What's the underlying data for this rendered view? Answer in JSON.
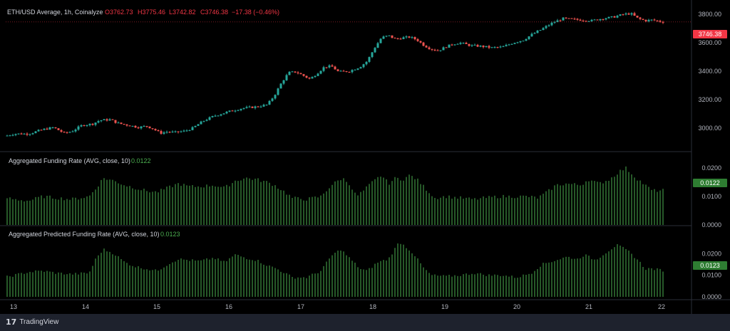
{
  "header": {
    "symbol_label": "ETH/USD Average, 1h, Coinalyze",
    "open": "O3762.73",
    "high": "H3775.46",
    "low": "L3742.82",
    "close": "C3746.38",
    "change": "−17.38 (−0.46%)"
  },
  "price_badge": "3746.38",
  "funding_panel": {
    "title": "Aggregated Funding Rate (AVG, close, 10)",
    "value": "0.0122"
  },
  "predicted_panel": {
    "title": "Aggregated Predicted Funding Rate (AVG, close, 10)",
    "value": "0.0123"
  },
  "footer": {
    "brand": "TradingView"
  },
  "colors": {
    "up": "#26a69a",
    "down": "#ef5350",
    "hist": "#4caf50",
    "badge_red": "#f23645",
    "badge_green": "#2e7d32"
  },
  "chart_data": [
    {
      "type": "candlestick",
      "title": "ETH/USD Average, 1h, Coinalyze",
      "x_labels": [
        "13",
        "14",
        "15",
        "16",
        "17",
        "18",
        "19",
        "20",
        "21",
        "22"
      ],
      "y_ticks": [
        3000,
        3200,
        3400,
        3600,
        3800
      ],
      "y_tick_labels": [
        "3000.00",
        "3200.00",
        "3400.00",
        "3600.00",
        "3800.00"
      ],
      "ylim": [
        2840,
        3870
      ],
      "close_anchors": [
        [
          0,
          2935
        ],
        [
          20,
          2960
        ],
        [
          40,
          2960
        ],
        [
          60,
          2990
        ],
        [
          75,
          3005
        ],
        [
          90,
          2965
        ],
        [
          100,
          2975
        ],
        [
          115,
          3020
        ],
        [
          130,
          3030
        ],
        [
          140,
          3055
        ],
        [
          155,
          3060
        ],
        [
          165,
          3035
        ],
        [
          180,
          3020
        ],
        [
          195,
          3005
        ],
        [
          205,
          3015
        ],
        [
          215,
          2995
        ],
        [
          225,
          2965
        ],
        [
          235,
          2975
        ],
        [
          245,
          2970
        ],
        [
          260,
          2980
        ],
        [
          270,
          3000
        ],
        [
          285,
          3050
        ],
        [
          300,
          3085
        ],
        [
          320,
          3115
        ],
        [
          340,
          3140
        ],
        [
          360,
          3150
        ],
        [
          375,
          3165
        ],
        [
          385,
          3230
        ],
        [
          395,
          3320
        ],
        [
          405,
          3390
        ],
        [
          415,
          3395
        ],
        [
          425,
          3370
        ],
        [
          435,
          3345
        ],
        [
          445,
          3385
        ],
        [
          455,
          3430
        ],
        [
          465,
          3435
        ],
        [
          475,
          3395
        ],
        [
          490,
          3400
        ],
        [
          505,
          3430
        ],
        [
          515,
          3470
        ],
        [
          525,
          3560
        ],
        [
          535,
          3635
        ],
        [
          545,
          3650
        ],
        [
          555,
          3625
        ],
        [
          565,
          3635
        ],
        [
          575,
          3640
        ],
        [
          585,
          3620
        ],
        [
          595,
          3580
        ],
        [
          605,
          3555
        ],
        [
          615,
          3545
        ],
        [
          625,
          3570
        ],
        [
          635,
          3590
        ],
        [
          645,
          3600
        ],
        [
          660,
          3580
        ],
        [
          675,
          3575
        ],
        [
          690,
          3565
        ],
        [
          705,
          3570
        ],
        [
          720,
          3600
        ],
        [
          735,
          3620
        ],
        [
          745,
          3655
        ],
        [
          760,
          3695
        ],
        [
          775,
          3740
        ],
        [
          790,
          3770
        ],
        [
          800,
          3765
        ],
        [
          815,
          3760
        ],
        [
          830,
          3755
        ],
        [
          845,
          3770
        ],
        [
          860,
          3780
        ],
        [
          875,
          3800
        ],
        [
          885,
          3805
        ],
        [
          895,
          3770
        ],
        [
          905,
          3755
        ],
        [
          915,
          3760
        ],
        [
          929,
          3746
        ]
      ]
    },
    {
      "type": "histogram",
      "title": "Aggregated Funding Rate (AVG, close, 10)",
      "y_ticks": [
        0.0,
        0.01,
        0.02
      ],
      "y_tick_labels": [
        "0.0000",
        "0.0100",
        "0.0200"
      ],
      "ylim": [
        0,
        0.022
      ],
      "last_value": 0.0122,
      "anchors": [
        [
          0,
          0.01
        ],
        [
          20,
          0.009
        ],
        [
          40,
          0.0085
        ],
        [
          60,
          0.01
        ],
        [
          80,
          0.0095
        ],
        [
          100,
          0.009
        ],
        [
          125,
          0.01
        ],
        [
          135,
          0.013
        ],
        [
          145,
          0.0165
        ],
        [
          160,
          0.0155
        ],
        [
          175,
          0.014
        ],
        [
          190,
          0.013
        ],
        [
          205,
          0.012
        ],
        [
          220,
          0.0115
        ],
        [
          235,
          0.013
        ],
        [
          250,
          0.0145
        ],
        [
          265,
          0.0135
        ],
        [
          280,
          0.0135
        ],
        [
          300,
          0.014
        ],
        [
          315,
          0.013
        ],
        [
          330,
          0.0155
        ],
        [
          345,
          0.0165
        ],
        [
          360,
          0.016
        ],
        [
          375,
          0.015
        ],
        [
          385,
          0.014
        ],
        [
          400,
          0.0115
        ],
        [
          410,
          0.0095
        ],
        [
          430,
          0.009
        ],
        [
          450,
          0.01
        ],
        [
          465,
          0.014
        ],
        [
          480,
          0.0165
        ],
        [
          490,
          0.0145
        ],
        [
          500,
          0.01
        ],
        [
          510,
          0.012
        ],
        [
          520,
          0.0145
        ],
        [
          535,
          0.0175
        ],
        [
          545,
          0.0145
        ],
        [
          555,
          0.0165
        ],
        [
          565,
          0.016
        ],
        [
          575,
          0.0175
        ],
        [
          585,
          0.016
        ],
        [
          600,
          0.012
        ],
        [
          610,
          0.0095
        ],
        [
          625,
          0.01
        ],
        [
          645,
          0.0095
        ],
        [
          665,
          0.009
        ],
        [
          680,
          0.0095
        ],
        [
          700,
          0.01
        ],
        [
          720,
          0.01
        ],
        [
          740,
          0.01
        ],
        [
          755,
          0.0095
        ],
        [
          770,
          0.012
        ],
        [
          780,
          0.014
        ],
        [
          795,
          0.0145
        ],
        [
          815,
          0.014
        ],
        [
          825,
          0.016
        ],
        [
          840,
          0.0145
        ],
        [
          855,
          0.016
        ],
        [
          870,
          0.019
        ],
        [
          878,
          0.02
        ],
        [
          890,
          0.017
        ],
        [
          905,
          0.014
        ],
        [
          915,
          0.012
        ],
        [
          929,
          0.0122
        ]
      ]
    },
    {
      "type": "histogram",
      "title": "Aggregated Predicted Funding Rate (AVG, close, 10)",
      "y_ticks": [
        0.0,
        0.01,
        0.02
      ],
      "y_tick_labels": [
        "0.0000",
        "0.0100",
        "0.0200"
      ],
      "ylim": [
        -0.001,
        0.028
      ],
      "last_value": 0.0123,
      "anchors": [
        [
          0,
          0.0085
        ],
        [
          20,
          0.01
        ],
        [
          40,
          0.0115
        ],
        [
          60,
          0.012
        ],
        [
          80,
          0.011
        ],
        [
          100,
          0.0105
        ],
        [
          125,
          0.011
        ],
        [
          135,
          0.018
        ],
        [
          145,
          0.022
        ],
        [
          160,
          0.02
        ],
        [
          175,
          0.016
        ],
        [
          190,
          0.014
        ],
        [
          205,
          0.013
        ],
        [
          220,
          0.012
        ],
        [
          235,
          0.015
        ],
        [
          250,
          0.0175
        ],
        [
          265,
          0.017
        ],
        [
          280,
          0.0165
        ],
        [
          300,
          0.018
        ],
        [
          315,
          0.016
        ],
        [
          330,
          0.0195
        ],
        [
          345,
          0.018
        ],
        [
          360,
          0.017
        ],
        [
          375,
          0.0145
        ],
        [
          385,
          0.0135
        ],
        [
          400,
          0.011
        ],
        [
          410,
          0.009
        ],
        [
          430,
          0.009
        ],
        [
          450,
          0.012
        ],
        [
          465,
          0.019
        ],
        [
          478,
          0.022
        ],
        [
          490,
          0.018
        ],
        [
          505,
          0.013
        ],
        [
          515,
          0.012
        ],
        [
          530,
          0.016
        ],
        [
          545,
          0.0175
        ],
        [
          560,
          0.0255
        ],
        [
          570,
          0.023
        ],
        [
          580,
          0.02
        ],
        [
          595,
          0.013
        ],
        [
          605,
          0.01
        ],
        [
          625,
          0.0095
        ],
        [
          645,
          0.01
        ],
        [
          665,
          0.011
        ],
        [
          685,
          0.01
        ],
        [
          705,
          0.01
        ],
        [
          725,
          0.009
        ],
        [
          745,
          0.011
        ],
        [
          760,
          0.015
        ],
        [
          775,
          0.0165
        ],
        [
          795,
          0.0185
        ],
        [
          810,
          0.0175
        ],
        [
          820,
          0.0195
        ],
        [
          835,
          0.017
        ],
        [
          850,
          0.0205
        ],
        [
          865,
          0.024
        ],
        [
          880,
          0.0215
        ],
        [
          895,
          0.017
        ],
        [
          905,
          0.013
        ],
        [
          915,
          0.013
        ],
        [
          929,
          0.0123
        ]
      ]
    }
  ]
}
